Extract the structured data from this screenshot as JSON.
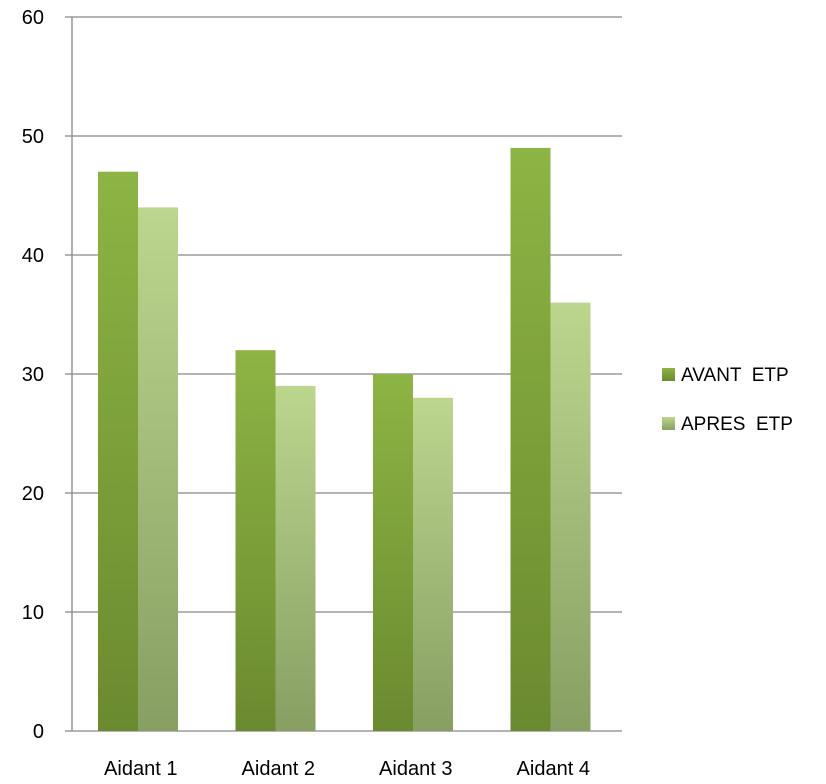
{
  "chart_data": {
    "type": "bar",
    "categories": [
      "Aidant 1",
      "Aidant 2",
      "Aidant 3",
      "Aidant 4"
    ],
    "series": [
      {
        "name": "AVANT  ETP",
        "values": [
          47,
          32,
          30,
          49
        ],
        "color_top": "#8db444",
        "color_bottom": "#6b8a2f"
      },
      {
        "name": "APRES  ETP",
        "values": [
          44,
          29,
          28,
          36
        ],
        "color_top": "#bcd68e",
        "color_bottom": "#879f62"
      }
    ],
    "ylim": [
      0,
      60
    ],
    "yticks": [
      "0",
      "10",
      "20",
      "30",
      "40",
      "50",
      "60"
    ],
    "grid": true,
    "legend_position": "right",
    "title": "",
    "xlabel": "",
    "ylabel": ""
  }
}
